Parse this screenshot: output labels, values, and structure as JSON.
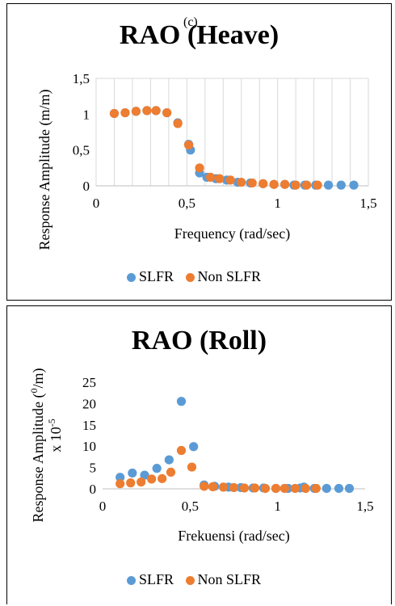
{
  "colors": {
    "slfr": "#5b9bd5",
    "non_slfr": "#ed7d31"
  },
  "chart_data": [
    {
      "type": "scatter",
      "panel_label": "(c)",
      "title": "RAO (Heave)",
      "xlabel": "Frequency (rad/sec)",
      "ylabel": "Response Amplitude (m/m)",
      "xlim": [
        0,
        1.5
      ],
      "ylim": [
        0,
        1.5
      ],
      "xticks": [
        "0",
        "0,5",
        "1",
        "1,5"
      ],
      "yticks": [
        "0",
        "0,5",
        "1",
        "1,5"
      ],
      "grid": "vertical",
      "legend_position": "bottom",
      "series": [
        {
          "name": "SLFR",
          "x": [
            0.1,
            0.16,
            0.22,
            0.28,
            0.33,
            0.39,
            0.45,
            0.51,
            0.52,
            0.57,
            0.61,
            0.66,
            0.72,
            0.78,
            0.85,
            0.92,
            0.98,
            1.04,
            1.09,
            1.15,
            1.21,
            1.28,
            1.35,
            1.42
          ],
          "y": [
            1.01,
            1.02,
            1.04,
            1.05,
            1.05,
            1.02,
            0.88,
            0.58,
            0.5,
            0.18,
            0.12,
            0.1,
            0.08,
            0.05,
            0.04,
            0.03,
            0.02,
            0.02,
            0.01,
            0.01,
            0.01,
            0.01,
            0.01,
            0.01
          ]
        },
        {
          "name": "Non SLFR",
          "x": [
            0.1,
            0.16,
            0.22,
            0.28,
            0.33,
            0.39,
            0.45,
            0.51,
            0.57,
            0.63,
            0.68,
            0.74,
            0.8,
            0.86,
            0.92,
            0.98,
            1.04,
            1.1,
            1.16,
            1.22
          ],
          "y": [
            1.01,
            1.02,
            1.04,
            1.05,
            1.05,
            1.02,
            0.87,
            0.57,
            0.25,
            0.12,
            0.1,
            0.08,
            0.05,
            0.04,
            0.03,
            0.02,
            0.02,
            0.01,
            0.01,
            0.01
          ]
        }
      ]
    },
    {
      "type": "scatter",
      "title": "RAO (Roll)",
      "xlabel": "Frekuensi (rad/sec)",
      "ylabel_base": "Response Amplitude (",
      "ylabel_sup": "0",
      "ylabel_end": "/m)",
      "ylabel2": "x 10",
      "ylabel2_sup": "-5",
      "xlim": [
        0,
        1.5
      ],
      "ylim": [
        0,
        25
      ],
      "xticks": [
        "0",
        "0,5",
        "1",
        "1,5"
      ],
      "yticks": [
        "0",
        "5",
        "10",
        "15",
        "20",
        "25"
      ],
      "grid": "none",
      "legend_position": "bottom",
      "series": [
        {
          "name": "SLFR",
          "x": [
            0.1,
            0.17,
            0.24,
            0.31,
            0.38,
            0.45,
            0.52,
            0.58,
            0.64,
            0.72,
            0.79,
            0.86,
            0.92,
            0.99,
            1.06,
            1.13,
            1.15,
            1.21,
            1.28,
            1.35,
            1.41
          ],
          "y": [
            2.7,
            3.7,
            3.2,
            4.8,
            6.8,
            20.5,
            9.9,
            0.9,
            0.6,
            0.4,
            0.3,
            0.2,
            0.2,
            0.1,
            0.1,
            0.2,
            0.4,
            0.1,
            0.1,
            0.1,
            0.1
          ]
        },
        {
          "name": "Non SLFR",
          "x": [
            0.1,
            0.16,
            0.22,
            0.28,
            0.34,
            0.39,
            0.45,
            0.51,
            0.58,
            0.63,
            0.69,
            0.75,
            0.81,
            0.87,
            0.93,
            0.99,
            1.04,
            1.1,
            1.16,
            1.22
          ],
          "y": [
            1.2,
            1.4,
            1.6,
            2.3,
            2.4,
            3.9,
            9.0,
            5.1,
            0.6,
            0.5,
            0.4,
            0.3,
            0.2,
            0.2,
            0.1,
            0.1,
            0.1,
            0.1,
            0.1,
            0.1
          ]
        }
      ]
    }
  ]
}
